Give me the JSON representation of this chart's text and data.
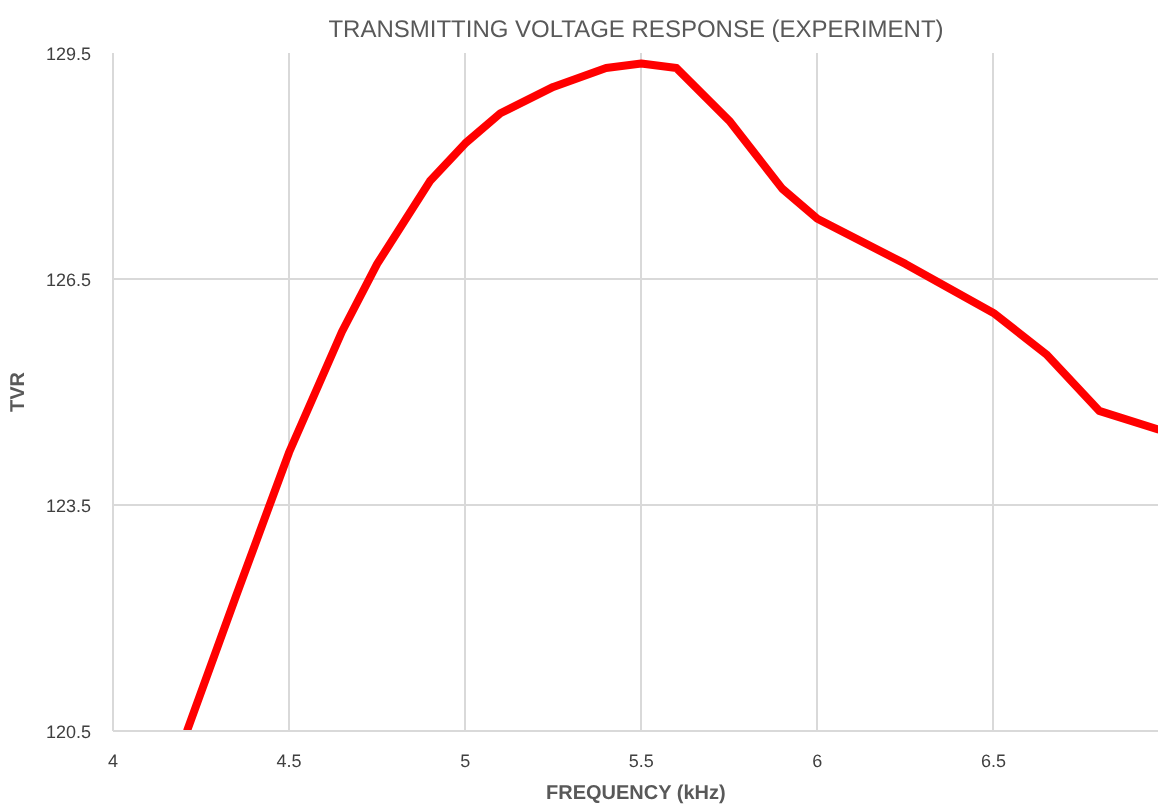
{
  "chart_data": {
    "type": "line",
    "title": "TRANSMITTING VOLTAGE RESPONSE (EXPERIMENT)",
    "xlabel": "FREQUENCY (kHz)",
    "ylabel": "TVR",
    "x": [
      4.21,
      4.35,
      4.5,
      4.65,
      4.75,
      4.9,
      5.0,
      5.1,
      5.25,
      5.4,
      5.5,
      5.6,
      5.75,
      5.9,
      6.0,
      6.25,
      6.5,
      6.65,
      6.8,
      6.97
    ],
    "series": [
      {
        "color": "#ff0000",
        "values": [
          120.5,
          122.3,
          124.2,
          125.8,
          126.7,
          127.8,
          128.3,
          128.7,
          129.05,
          129.3,
          129.36,
          129.3,
          128.6,
          127.7,
          127.3,
          126.7,
          126.05,
          125.5,
          124.75,
          124.5
        ]
      }
    ],
    "xlim": [
      4,
      6.97
    ],
    "ylim": [
      120.5,
      129.5
    ],
    "xticks": [
      4,
      4.5,
      5,
      5.5,
      6,
      6.5
    ],
    "yticks": [
      120.5,
      123.5,
      126.5,
      129.5
    ],
    "grid": true,
    "line_style": "solid"
  }
}
